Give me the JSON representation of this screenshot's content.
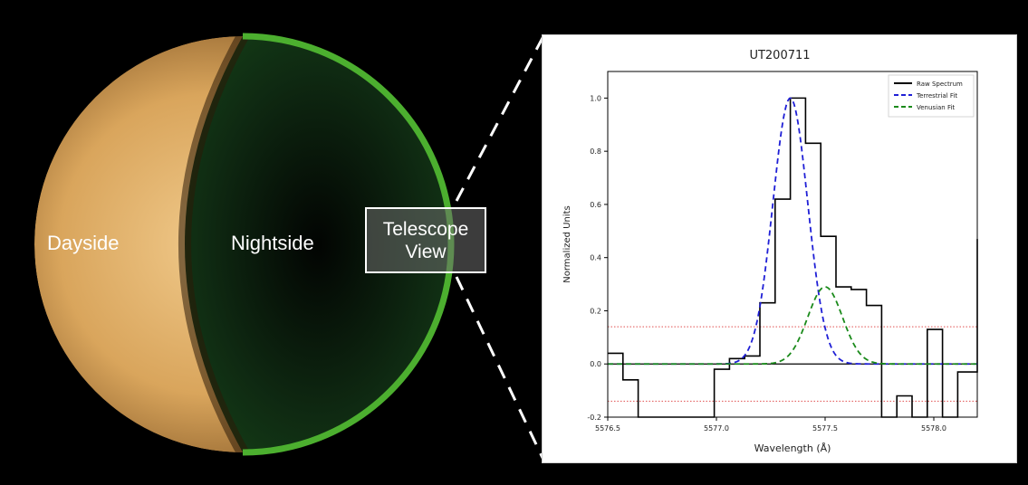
{
  "labels": {
    "dayside": "Dayside",
    "nightside": "Nightside",
    "telescope_line1": "Telescope",
    "telescope_line2": "View"
  },
  "colors": {
    "background": "#000000",
    "dayside": "#d9a85f",
    "nightside": "#0f2a12",
    "limb_ring": "#4caf2f",
    "raw_spectrum": "#000000",
    "terrestrial_fit": "#1f1fd6",
    "venusian_fit": "#1a8a1a",
    "threshold": "#e05050"
  },
  "chart_data": {
    "type": "line",
    "title": "UT200711",
    "xlabel": "Wavelength (Å)",
    "ylabel": "Normalized Units",
    "xlim": [
      5576.5,
      5578.2
    ],
    "ylim": [
      -0.2,
      1.1
    ],
    "xticks": [
      5576.5,
      5577.0,
      5577.5,
      5578.0
    ],
    "xtick_labels": [
      "5576.5",
      "5577.0",
      "5577.5",
      "5578.0"
    ],
    "yticks": [
      -0.2,
      0.0,
      0.2,
      0.4,
      0.6,
      0.8,
      1.0
    ],
    "ytick_labels": [
      "-0.2",
      "0.0",
      "0.2",
      "0.4",
      "0.6",
      "0.8",
      "1.0"
    ],
    "legend": [
      "Raw Spectrum",
      "Terrestrial Fit",
      "Venusian Fit"
    ],
    "legend_position": "top-right",
    "raw_spectrum": {
      "name": "Raw Spectrum",
      "style": "step",
      "x_edges": [
        5576.5,
        5576.57,
        5576.64,
        5576.71,
        5576.78,
        5576.85,
        5576.92,
        5576.99,
        5577.06,
        5577.13,
        5577.2,
        5577.27,
        5577.34,
        5577.41,
        5577.48,
        5577.55,
        5577.62,
        5577.69,
        5577.76,
        5577.83,
        5577.9,
        5577.97,
        5578.04,
        5578.11,
        5578.2
      ],
      "y": [
        0.04,
        -0.06,
        -0.2,
        -0.2,
        -0.2,
        -0.2,
        -0.2,
        -0.02,
        0.02,
        0.03,
        0.23,
        0.62,
        1.0,
        0.83,
        0.48,
        0.29,
        0.28,
        0.22,
        -0.2,
        -0.12,
        -0.2,
        0.13,
        -0.2,
        -0.03,
        0.47
      ]
    },
    "terrestrial_fit": {
      "name": "Terrestrial Fit",
      "style": "dashed",
      "amplitude": 1.0,
      "center": 5577.34,
      "sigma": 0.08
    },
    "venusian_fit": {
      "name": "Venusian Fit",
      "style": "dashed",
      "amplitude": 0.29,
      "center": 5577.5,
      "sigma": 0.08
    },
    "horizontal_lines": [
      {
        "y": 0.0,
        "color": "#000000",
        "style": "solid"
      },
      {
        "y": 0.14,
        "color": "#e05050",
        "style": "dotted"
      },
      {
        "y": -0.14,
        "color": "#e05050",
        "style": "dotted"
      }
    ]
  }
}
